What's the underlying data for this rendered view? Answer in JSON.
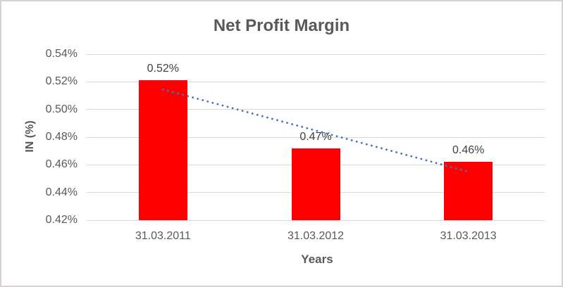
{
  "chart_data": {
    "type": "bar",
    "title": "Net Profit Margin",
    "xlabel": "Years",
    "ylabel": "IN (%)",
    "categories": [
      "31.03.2011",
      "31.03.2012",
      "31.03.2013"
    ],
    "values": [
      0.521,
      0.472,
      0.462
    ],
    "data_labels": [
      "0.52%",
      "0.47%",
      "0.46%"
    ],
    "ytick_labels": [
      "0.54%",
      "0.52%",
      "0.50%",
      "0.48%",
      "0.46%",
      "0.44%",
      "0.42%"
    ],
    "ylim": [
      0.42,
      0.54
    ],
    "grid": true,
    "legend": false,
    "bar_color": "#FF0000",
    "trendline": {
      "type": "linear",
      "style": "dotted",
      "color": "#4472C4",
      "start_value": 0.5145,
      "end_value": 0.4555
    },
    "colors": {
      "title_text": "#595959",
      "axis_text": "#595959",
      "data_label_text": "#404040",
      "gridline": "#D9D9D9",
      "chart_border": "#D5D2D2",
      "background": "#FFFFFF"
    }
  }
}
